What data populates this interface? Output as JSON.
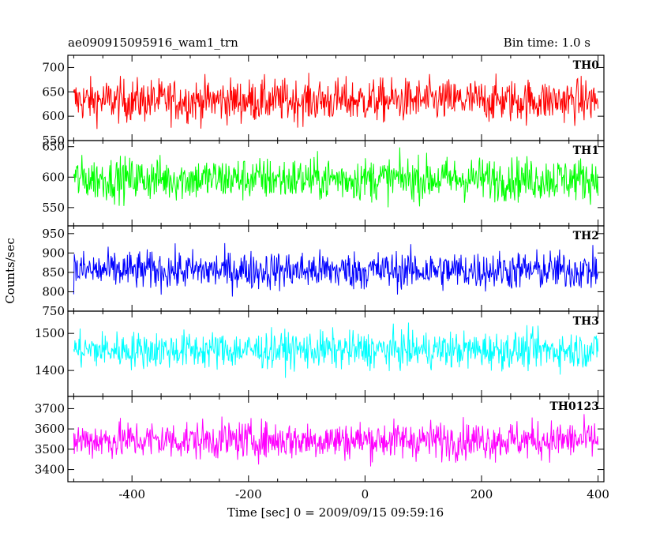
{
  "chart_data": {
    "type": "line",
    "title": "ae090915095916_wam1_trn",
    "bin_time": "Bin time: 1.0 s",
    "xlabel": "Time [sec] 0 = 2009/09/15 09:59:16",
    "ylabel": "Counts/sec",
    "xlim": [
      -510,
      410
    ],
    "x_ticks": [
      -400,
      -200,
      0,
      200,
      400
    ],
    "n_points": 900,
    "x_start": -500,
    "x_end": 400,
    "panels": [
      {
        "name": "TH0",
        "color": "#ff0000",
        "ylim": [
          550,
          725
        ],
        "yticks": [
          550,
          600,
          650,
          700
        ],
        "mean": 632,
        "amplitude": 40
      },
      {
        "name": "TH1",
        "color": "#00ff00",
        "ylim": [
          520,
          660
        ],
        "yticks": [
          550,
          600,
          650
        ],
        "mean": 597,
        "amplitude": 32
      },
      {
        "name": "TH2",
        "color": "#0000ff",
        "ylim": [
          750,
          970
        ],
        "yticks": [
          750,
          800,
          850,
          900,
          950
        ],
        "mean": 855,
        "amplitude": 45
      },
      {
        "name": "TH3",
        "color": "#00ffff",
        "ylim": [
          1330,
          1560
        ],
        "yticks": [
          1400,
          1500
        ],
        "mean": 1455,
        "amplitude": 45
      },
      {
        "name": "TH0123",
        "color": "#ff00ff",
        "ylim": [
          3340,
          3760
        ],
        "yticks": [
          3400,
          3500,
          3600,
          3700
        ],
        "mean": 3545,
        "amplitude": 85
      }
    ]
  }
}
